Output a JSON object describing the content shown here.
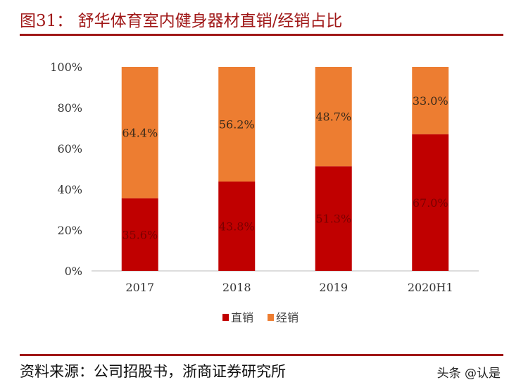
{
  "header": {
    "title": "图31：  舒华体育室内健身器材直销/经销占比"
  },
  "footer": {
    "source": "资料来源：公司招股书，浙商证券研究所",
    "watermark": "头条 @认是"
  },
  "colors": {
    "direct": "#C00000",
    "distribution": "#ED7D31",
    "title": "#A01818"
  },
  "chart_data": {
    "type": "bar",
    "stacked": true,
    "categories": [
      "2017",
      "2018",
      "2019",
      "2020H1"
    ],
    "series": [
      {
        "name": "直销",
        "values": [
          35.6,
          43.8,
          51.3,
          67.0
        ],
        "labels": [
          "35.6%",
          "43.8%",
          "51.3%",
          "67.0%"
        ]
      },
      {
        "name": "经销",
        "values": [
          64.4,
          56.2,
          48.7,
          33.0
        ],
        "labels": [
          "64.4%",
          "56.2%",
          "48.7%",
          "33.0%"
        ]
      }
    ],
    "ylim": [
      0,
      100
    ],
    "yticks": [
      "0%",
      "20%",
      "40%",
      "60%",
      "80%",
      "100%"
    ],
    "legend": "bottom",
    "grid": false
  }
}
